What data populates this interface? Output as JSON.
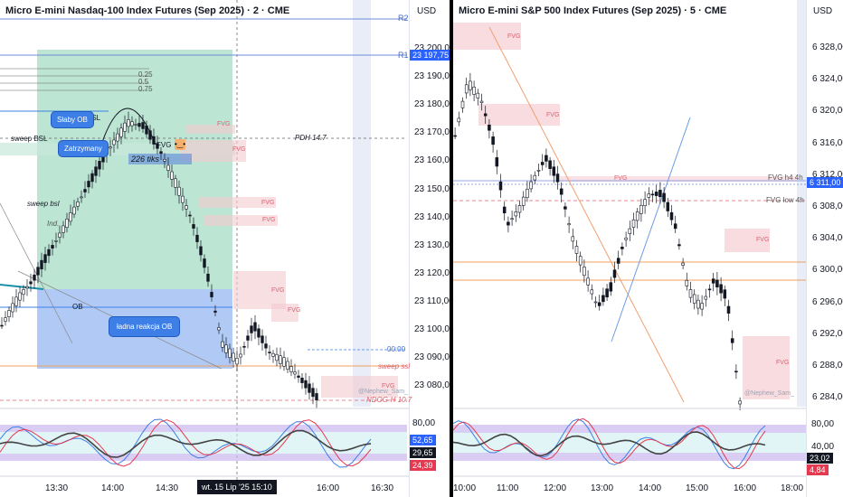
{
  "left": {
    "title": "Micro E-mini Nasdaq-100 Index Futures (Sep 2025) · 2 · CME",
    "currency": "USD",
    "price_ticks": [
      "23 200,00",
      "23 190,00",
      "23 180,00",
      "23 170,00",
      "23 160,00",
      "23 150,00",
      "23 140,00",
      "23 130,00",
      "23 120,00",
      "23 110,00",
      "23 100,00",
      "23 090,00",
      "23 080,00"
    ],
    "r2_label": "R2",
    "r1_label": "R1",
    "r1_price": "23 197,75",
    "countdown": "00:00",
    "fib_labels": [
      "0.25",
      "0.5",
      "0.75"
    ],
    "notes": {
      "sweep_bsl_top": "sweep BSL",
      "bsl": "BSL",
      "pdh": "PDH 14.7",
      "fvg_small": "FVG",
      "ticks": "226 tiks",
      "sweep_bsl": "sweep bsl",
      "ind": "Ind.",
      "ob": "OB",
      "sweep_ssl": "sweep ssl",
      "ndog": "NDOG-H 10.7",
      "watermark": "@Nephew_Sam_"
    },
    "fvg_labels": [
      "FVG",
      "FVG",
      "FVG",
      "FVG",
      "FVG",
      "FVG",
      "FVG"
    ],
    "callouts": {
      "weak_ob": "Słaby OB",
      "stopped": "Zatrzymany",
      "nice_reaction": "ładna reakcja OB"
    },
    "time_ticks": [
      "13:30",
      "14:00",
      "14:30",
      "16:00",
      "16:30"
    ],
    "crosshair_time": "wt. 15 Lip '25   15:10",
    "osc": {
      "level_80": "80,00",
      "val1": "52,65",
      "val2": "29,65",
      "val3": "24,39"
    }
  },
  "right": {
    "title": "Micro E-mini S&P 500 Index Futures (Sep 2025) · 5 · CME",
    "currency": "USD",
    "price_ticks": [
      "6 328,00",
      "6 324,00",
      "6 320,00",
      "6 316,00",
      "6 312,00",
      "6 308,00",
      "6 304,00",
      "6 300,00",
      "6 296,00",
      "6 292,00",
      "6 288,00",
      "6 284,00"
    ],
    "last_price": "6 311,00",
    "notes": {
      "fvg_h4": "FVG h4 4h",
      "fvg_low": "FVG low 4h",
      "watermark": "@Nephew_Sam_"
    },
    "fvg_labels": [
      "FVG",
      "FVG",
      "FVG",
      "FVG",
      "FVG"
    ],
    "time_ticks": [
      "10:00",
      "11:00",
      "12:00",
      "13:00",
      "14:00",
      "15:00",
      "16:00",
      "18:00"
    ],
    "osc": {
      "level_80": "80,00",
      "level_40": "40,00",
      "val1": "23,02",
      "val2": "4,84"
    }
  },
  "colors": {
    "bull": "#131722",
    "bear": "#131722",
    "fvg": "#f7c9cf",
    "green_zone": "#9fd9c1",
    "blue_zone": "#a8c4f3",
    "callout": "#3d7fe6",
    "osc_band": "#c9b8f0",
    "osc_mid": "#c8f0ee"
  }
}
